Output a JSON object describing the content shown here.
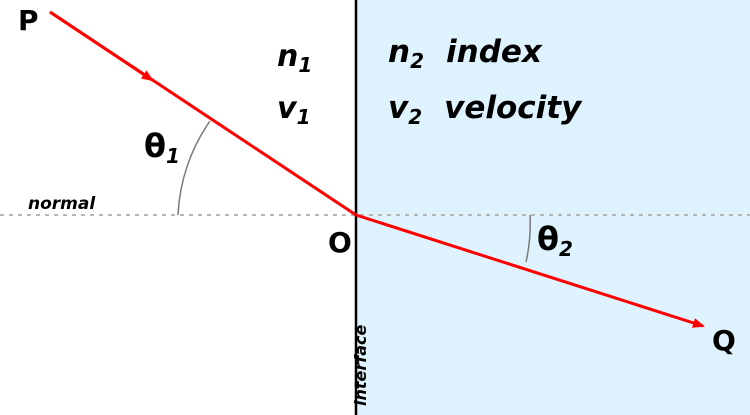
{
  "colors": {
    "background": "#ffffff",
    "medium2": "#dff3fe",
    "ray": "#ff0000",
    "line": "#000000",
    "normal": "#b5b5b5",
    "arc": "#7a7a7a"
  },
  "points": {
    "p": "P",
    "o": "O",
    "q": "Q"
  },
  "medium1": {
    "n_symbol": "n",
    "n_sub": "1",
    "v_symbol": "v",
    "v_sub": "1"
  },
  "medium2": {
    "n_symbol": "n",
    "n_sub": "2",
    "n_desc": "index",
    "v_symbol": "v",
    "v_sub": "2",
    "v_desc": "velocity"
  },
  "angles": {
    "theta1_symbol": "θ",
    "theta1_sub": "1",
    "theta2_symbol": "θ",
    "theta2_sub": "2"
  },
  "normal_label": "normal",
  "interface_label": "interface"
}
